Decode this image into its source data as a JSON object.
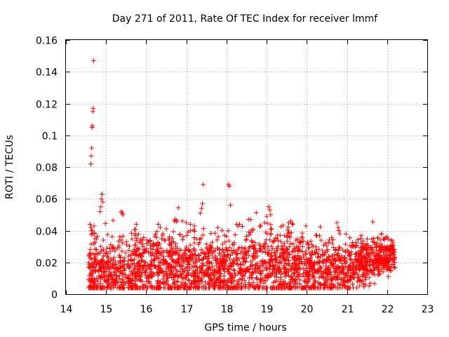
{
  "chart_data": {
    "type": "scatter",
    "title": "Day 271 of 2011, Rate Of TEC Index for receiver lmmf",
    "xlabel": "GPS time / hours",
    "ylabel": "ROTI / TECUs",
    "xlim": [
      14,
      23
    ],
    "ylim": [
      0,
      0.16
    ],
    "xticks": [
      "14",
      "15",
      "16",
      "17",
      "18",
      "19",
      "20",
      "21",
      "22",
      "23"
    ],
    "yticks": [
      "0",
      "0.02",
      "0.04",
      "0.06",
      "0.08",
      "0.1",
      "0.12",
      "0.14",
      "0.16"
    ],
    "grid": true,
    "marker": "+",
    "color": "#ff0000",
    "series": [
      {
        "name": "ROTI",
        "points": [
          [
            14.62,
            0.082
          ],
          [
            14.63,
            0.087
          ],
          [
            14.64,
            0.092
          ],
          [
            14.65,
            0.105
          ],
          [
            14.66,
            0.106
          ],
          [
            14.67,
            0.115
          ],
          [
            14.68,
            0.117
          ],
          [
            14.69,
            0.147
          ],
          [
            14.6,
            0.044
          ],
          [
            14.62,
            0.042
          ],
          [
            14.64,
            0.04
          ],
          [
            14.66,
            0.038
          ],
          [
            14.7,
            0.043
          ],
          [
            14.72,
            0.035
          ],
          [
            14.85,
            0.052
          ],
          [
            14.87,
            0.055
          ],
          [
            14.88,
            0.06
          ],
          [
            14.9,
            0.063
          ],
          [
            14.92,
            0.058
          ],
          [
            15.38,
            0.052
          ],
          [
            15.4,
            0.051
          ],
          [
            15.42,
            0.05
          ],
          [
            16.3,
            0.044
          ],
          [
            16.35,
            0.042
          ],
          [
            16.7,
            0.046
          ],
          [
            16.72,
            0.047
          ],
          [
            16.9,
            0.046
          ],
          [
            17.0,
            0.045
          ],
          [
            17.1,
            0.044
          ],
          [
            17.2,
            0.043
          ],
          [
            17.35,
            0.051
          ],
          [
            17.38,
            0.054
          ],
          [
            17.4,
            0.057
          ],
          [
            17.42,
            0.069
          ],
          [
            18.05,
            0.069
          ],
          [
            18.07,
            0.068
          ],
          [
            18.1,
            0.056
          ],
          [
            18.25,
            0.044
          ],
          [
            18.55,
            0.047
          ],
          [
            18.6,
            0.047
          ],
          [
            18.95,
            0.045
          ],
          [
            19.0,
            0.049
          ],
          [
            19.05,
            0.055
          ],
          [
            19.08,
            0.053
          ],
          [
            19.1,
            0.05
          ],
          [
            19.55,
            0.045
          ],
          [
            19.6,
            0.046
          ],
          [
            19.65,
            0.044
          ],
          [
            20.75,
            0.045
          ],
          [
            20.78,
            0.042
          ],
          [
            20.8,
            0.04
          ],
          [
            20.82,
            0.038
          ],
          [
            21.65,
            0.033
          ],
          [
            22.1,
            0.029
          ]
        ]
      }
    ]
  }
}
